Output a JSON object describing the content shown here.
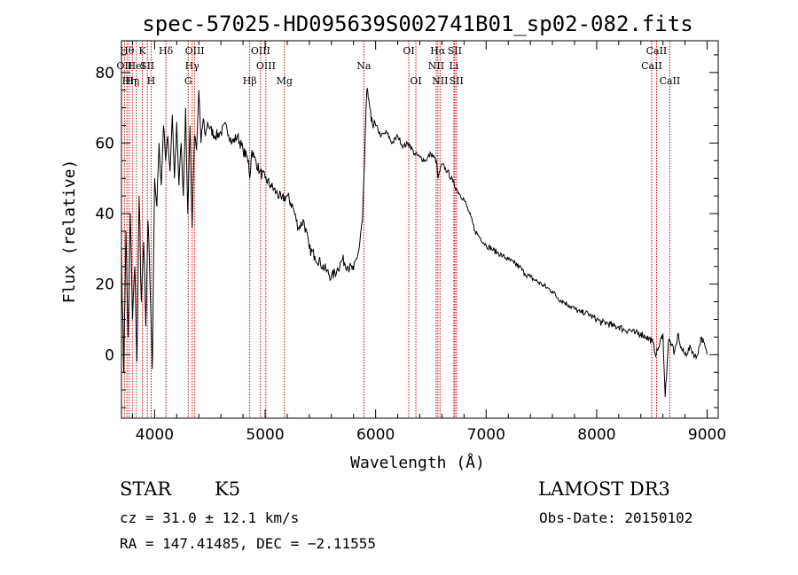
{
  "chart_data": {
    "type": "line",
    "title": "spec-57025-HD095639S002741B01_sp02-082.fits",
    "xlabel": "Wavelength (Å)",
    "ylabel": "Flux (relative)",
    "xlim": [
      3700,
      9100
    ],
    "ylim": [
      -18,
      89
    ],
    "xticks": [
      4000,
      5000,
      6000,
      7000,
      8000,
      9000
    ],
    "yticks": [
      0,
      20,
      40,
      60,
      80
    ],
    "series": [
      {
        "name": "flux",
        "x": [
          3700,
          3720,
          3740,
          3760,
          3780,
          3800,
          3820,
          3840,
          3860,
          3880,
          3900,
          3920,
          3940,
          3960,
          3980,
          4000,
          4020,
          4040,
          4060,
          4080,
          4100,
          4120,
          4140,
          4160,
          4180,
          4200,
          4220,
          4240,
          4260,
          4280,
          4300,
          4320,
          4340,
          4360,
          4380,
          4400,
          4420,
          4440,
          4460,
          4480,
          4500,
          4550,
          4600,
          4650,
          4700,
          4750,
          4800,
          4850,
          4861,
          4880,
          4900,
          4950,
          5000,
          5050,
          5100,
          5150,
          5200,
          5250,
          5300,
          5350,
          5400,
          5450,
          5500,
          5550,
          5600,
          5650,
          5700,
          5750,
          5800,
          5850,
          5880,
          5900,
          5920,
          5940,
          5960,
          6000,
          6050,
          6100,
          6150,
          6200,
          6250,
          6300,
          6350,
          6400,
          6450,
          6500,
          6550,
          6563,
          6600,
          6650,
          6700,
          6750,
          6800,
          6850,
          6900,
          6950,
          7000,
          7050,
          7100,
          7150,
          7200,
          7250,
          7300,
          7350,
          7400,
          7450,
          7500,
          7550,
          7600,
          7650,
          7700,
          7750,
          7800,
          7850,
          7900,
          7950,
          8000,
          8050,
          8100,
          8150,
          8200,
          8250,
          8300,
          8350,
          8400,
          8450,
          8500,
          8540,
          8560,
          8600,
          8620,
          8650,
          8680,
          8700,
          8720,
          8740,
          8760,
          8800,
          8850,
          8900,
          8950,
          9000
        ],
        "y": [
          30,
          -5,
          35,
          5,
          40,
          10,
          25,
          -2,
          45,
          15,
          32,
          8,
          38,
          18,
          -4,
          50,
          42,
          60,
          48,
          65,
          55,
          62,
          52,
          68,
          50,
          66,
          48,
          60,
          45,
          70,
          40,
          65,
          36,
          62,
          58,
          75,
          60,
          67,
          62,
          66,
          64,
          62,
          63,
          65,
          60,
          62,
          58,
          55,
          50,
          58,
          56,
          52,
          50,
          48,
          46,
          44,
          45,
          42,
          36,
          38,
          30,
          28,
          26,
          24,
          22,
          24,
          27,
          25,
          24,
          30,
          38,
          55,
          75,
          72,
          66,
          65,
          62,
          63,
          60,
          62,
          59,
          60,
          57,
          56,
          55,
          57,
          55,
          50,
          54,
          52,
          49,
          46,
          44,
          40,
          35,
          33,
          31,
          30,
          29,
          28,
          27,
          26,
          25,
          23,
          22,
          21,
          20,
          19,
          18,
          16,
          15,
          14,
          13,
          12,
          12,
          11,
          10,
          9,
          9,
          8,
          8,
          7,
          7,
          6,
          6,
          5,
          4,
          0,
          2,
          6,
          -12,
          4,
          3,
          0,
          3,
          6,
          2,
          0,
          2,
          -1,
          5,
          0
        ]
      }
    ],
    "lines": [
      {
        "wl": 3727,
        "label": "OII",
        "row": 2
      },
      {
        "wl": 3750,
        "label": "Hθ",
        "row": 1
      },
      {
        "wl": 3770,
        "label": "Hη",
        "row": 3
      },
      {
        "wl": 3798,
        "label": "Hη",
        "row": 3
      },
      {
        "wl": 3835,
        "label": "HeI",
        "row": 2
      },
      {
        "wl": 3889,
        "label": "K",
        "row": 1
      },
      {
        "wl": 3934,
        "label": "SII",
        "row": 2
      },
      {
        "wl": 3968,
        "label": "H",
        "row": 3
      },
      {
        "wl": 4102,
        "label": "Hδ",
        "row": 1
      },
      {
        "wl": 4304,
        "label": "G",
        "row": 3
      },
      {
        "wl": 4340,
        "label": "Hγ",
        "row": 2
      },
      {
        "wl": 4363,
        "label": "OIII",
        "row": 1
      },
      {
        "wl": 4861,
        "label": "Hβ",
        "row": 3
      },
      {
        "wl": 4959,
        "label": "OIII",
        "row": 1
      },
      {
        "wl": 5007,
        "label": "OIII",
        "row": 2
      },
      {
        "wl": 5175,
        "label": "Mg",
        "row": 3
      },
      {
        "wl": 5893,
        "label": "Na",
        "row": 2
      },
      {
        "wl": 6300,
        "label": "OI",
        "row": 1
      },
      {
        "wl": 6364,
        "label": "OI",
        "row": 3
      },
      {
        "wl": 6548,
        "label": "NII",
        "row": 2
      },
      {
        "wl": 6563,
        "label": "Hα",
        "row": 1
      },
      {
        "wl": 6583,
        "label": "NII",
        "row": 3
      },
      {
        "wl": 6708,
        "label": "Li",
        "row": 2
      },
      {
        "wl": 6716,
        "label": "SII",
        "row": 1
      },
      {
        "wl": 6731,
        "label": "SII",
        "row": 3
      },
      {
        "wl": 8498,
        "label": "CaII",
        "row": 2
      },
      {
        "wl": 8542,
        "label": "CaII",
        "row": 1
      },
      {
        "wl": 8662,
        "label": "CaII",
        "row": 3
      }
    ]
  },
  "footer": {
    "class_label": "STAR",
    "subclass": "K5",
    "survey": "LAMOST DR3",
    "cz": "cz = 31.0 ± 12.1 km/s",
    "obs_date": "Obs-Date: 20150102",
    "radec": "RA = 147.41485, DEC =  −2.11555"
  },
  "colors": {
    "axis": "#000000",
    "spectrum": "#000000",
    "line_marker": "#cc0000"
  }
}
